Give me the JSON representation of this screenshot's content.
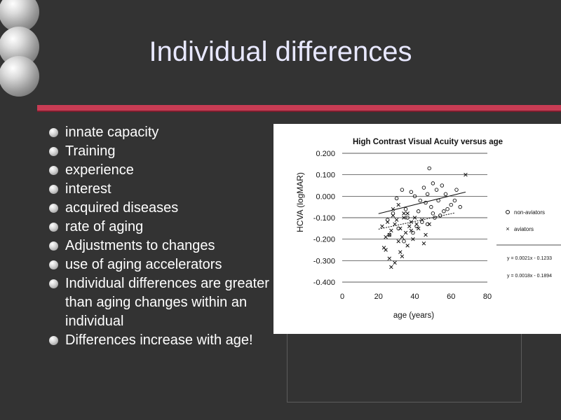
{
  "slide": {
    "title": "Individual differences",
    "bullets": [
      "innate capacity",
      "Training",
      "experience",
      "interest",
      "acquired diseases",
      "rate of aging",
      "Adjustments to changes",
      "use of aging accelerators",
      "Individual differences are greater than aging changes within an individual",
      "Differences increase with age!"
    ]
  },
  "chart_data": {
    "type": "scatter",
    "title": "High Contrast Visual Acuity versus age",
    "xlabel": "age (years)",
    "ylabel": "HCVA (logMAR)",
    "xlim": [
      0,
      80
    ],
    "ylim": [
      -0.4,
      0.2
    ],
    "xticks": [
      "0",
      "20",
      "40",
      "60",
      "80"
    ],
    "yticks": [
      "0.200",
      "0.100",
      "0.000",
      "-0.100",
      "-0.200",
      "-0.300",
      "-0.400"
    ],
    "grid": true,
    "legend_position": "right",
    "series": [
      {
        "name": "non-aviators",
        "marker": "o",
        "x": [
          30,
          33,
          38,
          40,
          43,
          45,
          47,
          48,
          50,
          52,
          55,
          57,
          60,
          63,
          65,
          35,
          42,
          46,
          50,
          53,
          58,
          25,
          28,
          36,
          44,
          49,
          54,
          31,
          39,
          47,
          56,
          62,
          26,
          34,
          41,
          51
        ],
        "y": [
          -0.01,
          0.03,
          0.02,
          0.0,
          -0.02,
          0.04,
          0.01,
          0.13,
          0.06,
          0.03,
          0.05,
          0.01,
          -0.04,
          0.03,
          -0.05,
          -0.06,
          -0.07,
          -0.03,
          -0.08,
          -0.02,
          -0.06,
          -0.11,
          -0.08,
          -0.1,
          -0.12,
          -0.05,
          -0.09,
          -0.15,
          -0.17,
          -0.13,
          -0.07,
          -0.02,
          -0.18,
          -0.21,
          -0.14,
          -0.1
        ],
        "trendline": "y = 0.0021x - 0.1233"
      },
      {
        "name": "aviators",
        "marker": "x",
        "x": [
          22,
          23,
          24,
          25,
          26,
          27,
          28,
          29,
          30,
          31,
          32,
          33,
          34,
          35,
          36,
          37,
          38,
          40,
          42,
          44,
          46,
          48,
          26,
          29,
          33,
          36,
          39,
          45,
          28,
          31,
          34,
          38,
          41,
          24,
          27,
          32,
          68
        ],
        "y": [
          -0.14,
          -0.24,
          -0.19,
          -0.12,
          -0.18,
          -0.16,
          -0.09,
          -0.13,
          -0.11,
          -0.21,
          -0.15,
          -0.19,
          -0.1,
          -0.17,
          -0.08,
          -0.14,
          -0.12,
          -0.1,
          -0.15,
          -0.11,
          -0.18,
          -0.13,
          -0.29,
          -0.31,
          -0.28,
          -0.23,
          -0.2,
          -0.22,
          -0.06,
          -0.04,
          -0.08,
          -0.16,
          -0.13,
          -0.25,
          -0.33,
          -0.26,
          0.1
        ],
        "trendline": "y = 0.0018x - 0.1894"
      }
    ]
  }
}
